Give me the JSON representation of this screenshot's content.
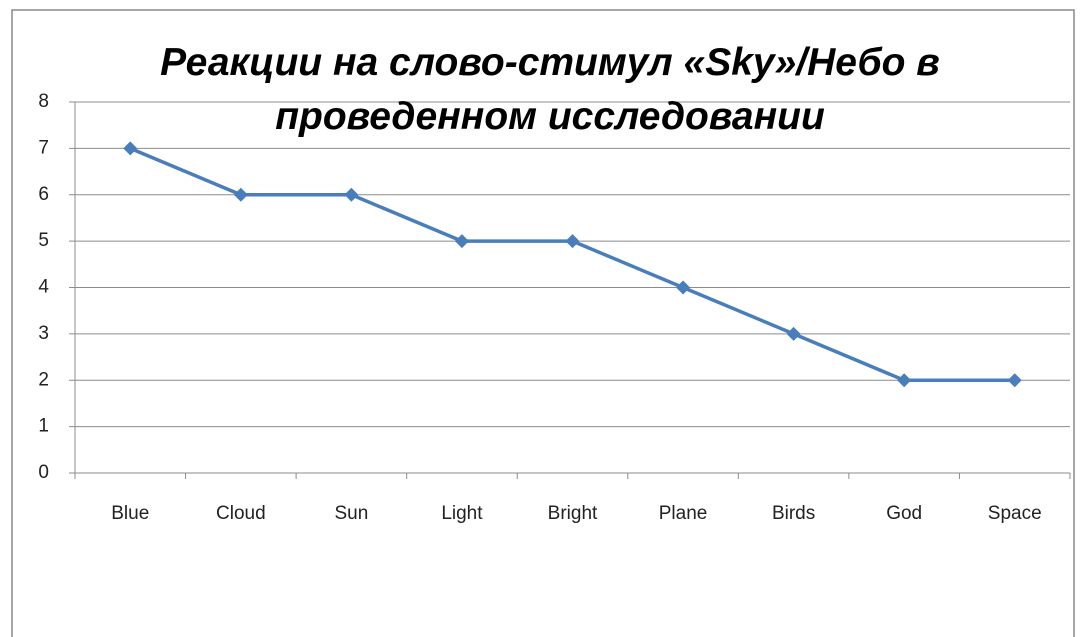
{
  "chart_data": {
    "type": "line",
    "title": "Реакции на слово-стимул «Sky»/Небо в проведенном исследовании",
    "categories": [
      "Blue",
      "Cloud",
      "Sun",
      "Light",
      "Bright",
      "Plane",
      "Birds",
      "God",
      "Space"
    ],
    "series": [
      {
        "name": "Sky",
        "color": "#4a7ebb",
        "values": [
          7,
          6,
          6,
          5,
          5,
          4,
          3,
          2,
          2
        ]
      }
    ],
    "ylim": [
      0,
      8
    ],
    "yticks": [
      0,
      1,
      2,
      3,
      4,
      5,
      6,
      7,
      8
    ],
    "grid": true
  }
}
